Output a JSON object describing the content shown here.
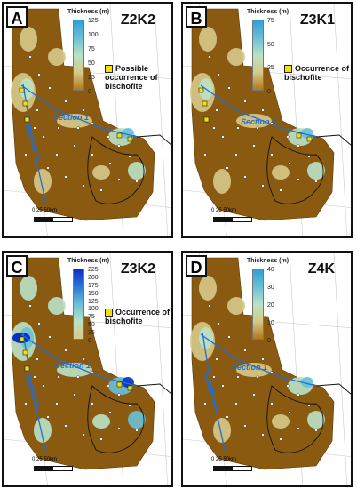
{
  "panels": [
    {
      "label": "A",
      "title": "Z2K2",
      "legend_title": "Thickness (m)",
      "ticks": [
        "125",
        "100",
        "75",
        "50",
        "25",
        "0"
      ],
      "legend_text": "Possible occurrence of bischofite",
      "sections": [
        "Section 1",
        "Section 2"
      ],
      "scale": {
        "ticks": "0   25   50km"
      },
      "colors": [
        "#2f9fd7",
        "#69c0d6",
        "#b9e2c6",
        "#d6c98a",
        "#b2781a",
        "#8a5a10"
      ]
    },
    {
      "label": "B",
      "title": "Z3K1",
      "legend_title": "Thickness (m)",
      "ticks": [
        "75",
        "50",
        "25",
        "0"
      ],
      "legend_text": "Occurrence of bischofite",
      "sections": [
        "Section 1"
      ],
      "scale": {
        "ticks": "0   25   50km"
      },
      "colors": [
        "#2f9fd7",
        "#69c0d6",
        "#b9e2c6",
        "#d6c98a",
        "#b2781a",
        "#8a5a10"
      ]
    },
    {
      "label": "C",
      "title": "Z3K2",
      "legend_title": "Thickness (m)",
      "ticks": [
        "225",
        "200",
        "175",
        "150",
        "125",
        "100",
        "75",
        "50",
        "25",
        "0"
      ],
      "legend_text": "Occurrence of bischofite",
      "sections": [
        "Section 1",
        "Section 2"
      ],
      "scale": {
        "ticks": "0   25   50km"
      },
      "colors": [
        "#0b2fc6",
        "#2b78d5",
        "#69c0d6",
        "#b9e2c6",
        "#d6c98a",
        "#8a5a10"
      ]
    },
    {
      "label": "D",
      "title": "Z4K",
      "legend_title": "Thickness (m)",
      "ticks": [
        "40",
        "30",
        "20",
        "10",
        "0"
      ],
      "legend_text": "",
      "sections": [
        "Section 1",
        "Section 2"
      ],
      "scale": {
        "ticks": "0   25   50km"
      },
      "colors": [
        "#2f9fd7",
        "#69c0d6",
        "#b9e2c6",
        "#d6c98a",
        "#b2781a",
        "#8a5a10"
      ]
    }
  ]
}
